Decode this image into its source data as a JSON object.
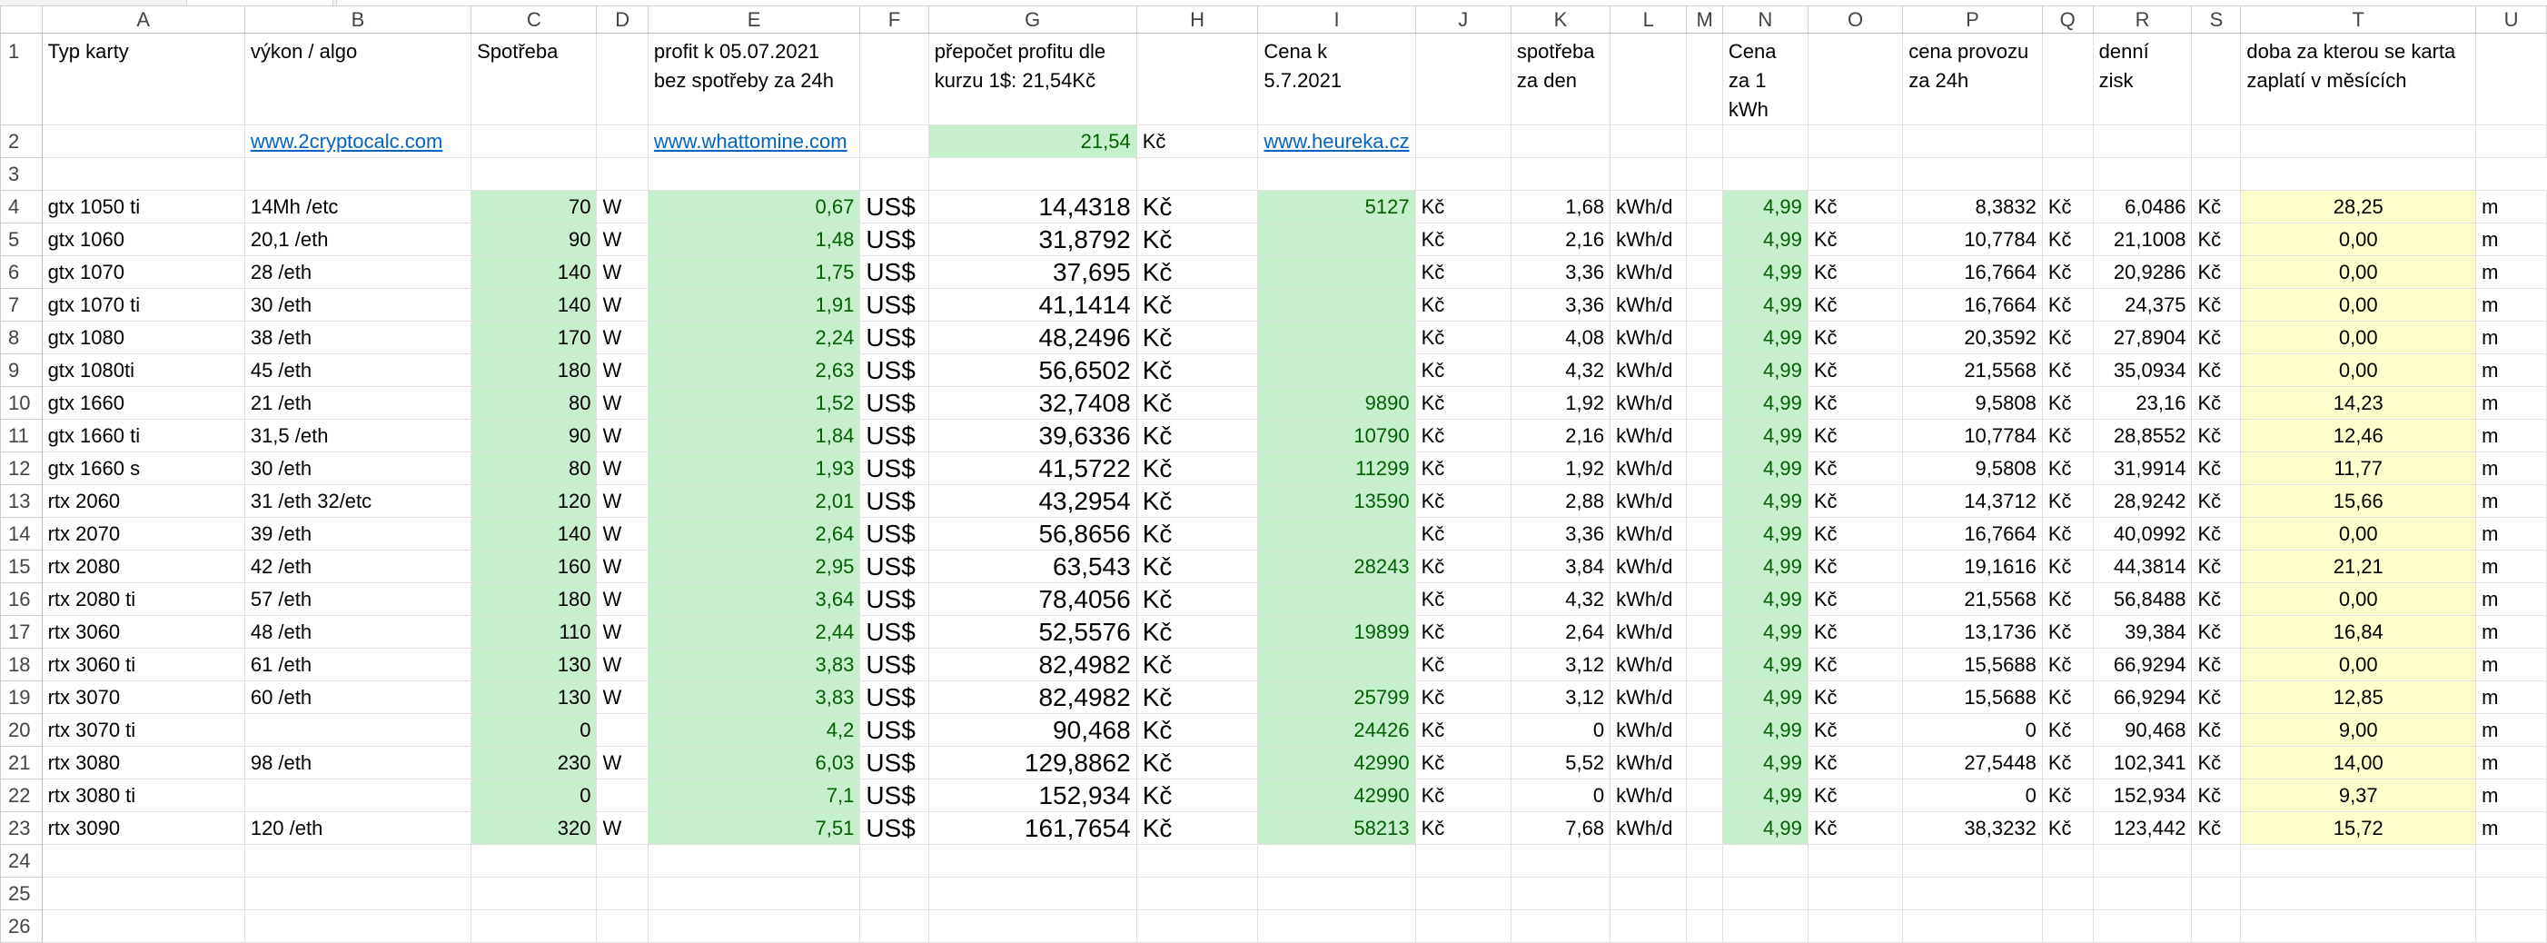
{
  "columns": [
    "A",
    "B",
    "C",
    "D",
    "E",
    "F",
    "G",
    "H",
    "I",
    "J",
    "K",
    "L",
    "M",
    "N",
    "O",
    "P",
    "Q",
    "R",
    "S",
    "T",
    "U"
  ],
  "header": {
    "A": "Typ karty",
    "B": "výkon / algo",
    "C": "Spotřeba",
    "E": "profit k 05.07.2021 bez spotřeby za 24h",
    "G": "přepočet profitu dle kurzu 1$: 21,54Kč",
    "I": "Cena k 5.7.2021",
    "K": "spotřeba za den",
    "N": "Cena za 1 kWh",
    "P": "cena provozu za 24h",
    "R": "denní zisk",
    "T": "doba za kterou se karta zaplatí v měsících"
  },
  "row2": {
    "B_link": "www.2cryptocalc.com",
    "E_link": "www.whattomine.com",
    "G_rate": "21,54",
    "H_unit": "Kč",
    "I_link": "www.heureka.cz"
  },
  "units": {
    "watt": "W",
    "usd": "US$",
    "czk": "Kč",
    "kwh_day": "kWh/d",
    "months": "m"
  },
  "rows": [
    {
      "n": "4",
      "A": "gtx 1050 ti",
      "B": "14Mh /etc",
      "C": "70",
      "D": "W",
      "E": "0,67",
      "G": "14,4318",
      "I": "5127",
      "K": "1,68",
      "L": "kWh/d",
      "N": "4,99",
      "P": "8,3832",
      "R": "6,0486",
      "T": "28,25"
    },
    {
      "n": "5",
      "A": "gtx 1060",
      "B": "20,1 /eth",
      "C": "90",
      "D": "W",
      "E": "1,48",
      "G": "31,8792",
      "I": "",
      "K": "2,16",
      "L": "kWh/d",
      "N": "4,99",
      "P": "10,7784",
      "R": "21,1008",
      "T": "0,00"
    },
    {
      "n": "6",
      "A": "gtx 1070",
      "B": "28  /eth",
      "C": "140",
      "D": "W",
      "E": "1,75",
      "G": "37,695",
      "I": "",
      "K": "3,36",
      "L": "kWh/d",
      "N": "4,99",
      "P": "16,7664",
      "R": "20,9286",
      "T": "0,00"
    },
    {
      "n": "7",
      "A": "gtx 1070 ti",
      "B": "30  /eth",
      "C": "140",
      "D": "W",
      "E": "1,91",
      "G": "41,1414",
      "I": "",
      "K": "3,36",
      "L": "kWh/d",
      "N": "4,99",
      "P": "16,7664",
      "R": "24,375",
      "T": "0,00"
    },
    {
      "n": "8",
      "A": "gtx 1080",
      "B": "38 /eth",
      "C": "170",
      "D": "W",
      "E": "2,24",
      "G": "48,2496",
      "I": "",
      "K": "4,08",
      "L": "kWh/d",
      "N": "4,99",
      "P": "20,3592",
      "R": "27,8904",
      "T": "0,00"
    },
    {
      "n": "9",
      "A": "gtx 1080ti",
      "B": "45 /eth",
      "C": "180",
      "D": "W",
      "E": "2,63",
      "G": "56,6502",
      "I": "",
      "K": "4,32",
      "L": "kWh/d",
      "N": "4,99",
      "P": "21,5568",
      "R": "35,0934",
      "T": "0,00"
    },
    {
      "n": "10",
      "A": "gtx 1660",
      "B": "21 /eth",
      "C": "80",
      "D": "W",
      "E": "1,52",
      "G": "32,7408",
      "I": "9890",
      "K": "1,92",
      "L": "kWh/d",
      "N": "4,99",
      "P": "9,5808",
      "R": "23,16",
      "T": "14,23"
    },
    {
      "n": "11",
      "A": "gtx 1660 ti",
      "B": "31,5 /eth",
      "C": "90",
      "D": "W",
      "E": "1,84",
      "G": "39,6336",
      "I": "10790",
      "K": "2,16",
      "L": "kWh/d",
      "N": "4,99",
      "P": "10,7784",
      "R": "28,8552",
      "T": "12,46"
    },
    {
      "n": "12",
      "A": "gtx 1660 s",
      "B": "30  /eth",
      "C": "80",
      "D": "W",
      "E": "1,93",
      "G": "41,5722",
      "I": "11299",
      "K": "1,92",
      "L": "kWh/d",
      "N": "4,99",
      "P": "9,5808",
      "R": "31,9914",
      "T": "11,77"
    },
    {
      "n": "13",
      "A": "rtx 2060",
      "B": "31  /eth  32/etc",
      "C": "120",
      "D": "W",
      "E": "2,01",
      "G": "43,2954",
      "I": "13590",
      "K": "2,88",
      "L": "kWh/d",
      "N": "4,99",
      "P": "14,3712",
      "R": "28,9242",
      "T": "15,66"
    },
    {
      "n": "14",
      "A": "rtx 2070",
      "B": "39  /eth",
      "C": "140",
      "D": "W",
      "E": "2,64",
      "G": "56,8656",
      "I": "",
      "K": "3,36",
      "L": "kWh/d",
      "N": "4,99",
      "P": "16,7664",
      "R": "40,0992",
      "T": "0,00"
    },
    {
      "n": "15",
      "A": "rtx 2080",
      "B": "42  /eth",
      "C": "160",
      "D": "W",
      "E": "2,95",
      "G": "63,543",
      "I": "28243",
      "K": "3,84",
      "L": "kWh/d",
      "N": "4,99",
      "P": "19,1616",
      "R": "44,3814",
      "T": "21,21"
    },
    {
      "n": "16",
      "A": "rtx 2080 ti",
      "B": "57  /eth",
      "C": "180",
      "D": "W",
      "E": "3,64",
      "G": "78,4056",
      "I": "",
      "K": "4,32",
      "L": "kWh/d",
      "N": "4,99",
      "P": "21,5568",
      "R": "56,8488",
      "T": "0,00"
    },
    {
      "n": "17",
      "A": "rtx 3060",
      "B": "48  /eth",
      "C": "110",
      "D": "W",
      "E": "2,44",
      "G": "52,5576",
      "I": "19899",
      "K": "2,64",
      "L": "kWh/d",
      "N": "4,99",
      "P": "13,1736",
      "R": "39,384",
      "T": "16,84"
    },
    {
      "n": "18",
      "A": "rtx 3060 ti",
      "B": "61  /eth",
      "C": "130",
      "D": "W",
      "E": "3,83",
      "G": "82,4982",
      "I": "",
      "K": "3,12",
      "L": "kWh/d",
      "N": "4,99",
      "P": "15,5688",
      "R": "66,9294",
      "T": "0,00"
    },
    {
      "n": "19",
      "A": "rtx 3070",
      "B": "60  /eth",
      "C": "130",
      "D": "W",
      "E": "3,83",
      "G": "82,4982",
      "I": "25799",
      "K": "3,12",
      "L": "kWh/d",
      "N": "4,99",
      "P": "15,5688",
      "R": "66,9294",
      "T": "12,85"
    },
    {
      "n": "20",
      "A": "rtx 3070 ti",
      "B": "",
      "C": "0",
      "D": "",
      "E": "4,2",
      "G": "90,468",
      "I": "24426",
      "K": "0",
      "L": "kWh/d",
      "N": "4,99",
      "P": "0",
      "R": "90,468",
      "T": "9,00"
    },
    {
      "n": "21",
      "A": "rtx 3080",
      "B": "98  /eth",
      "C": "230",
      "D": "W",
      "E": "6,03",
      "G": "129,8862",
      "I": "42990",
      "K": "5,52",
      "L": "kWh/d",
      "N": "4,99",
      "P": "27,5448",
      "R": "102,341",
      "T": "14,00"
    },
    {
      "n": "22",
      "A": "rtx 3080 ti",
      "B": "",
      "C": "0",
      "D": "",
      "E": "7,1",
      "G": "152,934",
      "I": "42990",
      "K": "0",
      "L": "kWh/d",
      "N": "4,99",
      "P": "0",
      "R": "152,934",
      "T": "9,37"
    },
    {
      "n": "23",
      "A": "rtx 3090",
      "B": "120 /eth",
      "C": "320",
      "D": "W",
      "E": "7,51",
      "G": "161,7654",
      "I": "58213",
      "K": "7,68",
      "L": "kWh/d",
      "N": "4,99",
      "P": "38,3232",
      "R": "123,442",
      "T": "15,72"
    }
  ],
  "empty_row_numbers": [
    "1",
    "2",
    "3",
    "24",
    "25",
    "26"
  ],
  "colors": {
    "good_fill": "#c6efce",
    "good_text": "#006100",
    "neutral_fill": "#ffffcc",
    "link": "#0563c1"
  }
}
